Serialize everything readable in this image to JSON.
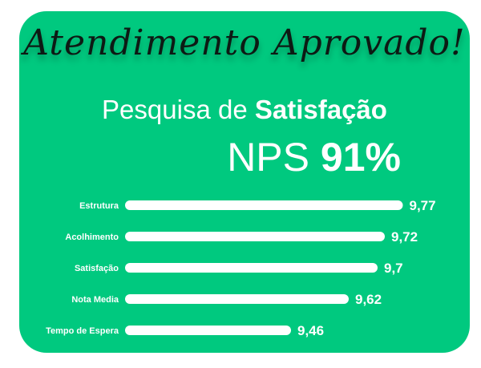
{
  "headline": "Atendimento Aprovado!",
  "title": {
    "light": "Pesquisa de",
    "bold": "Satisfação"
  },
  "nps": {
    "label": "NPS",
    "value": "91%"
  },
  "colors": {
    "background": "#00c97f",
    "bar": "#ffffff",
    "text": "#ffffff",
    "headline": "#0d1a14"
  },
  "chart_data": {
    "type": "bar",
    "orientation": "horizontal",
    "categories": [
      "Estrutura",
      "Acolhimento",
      "Satisfação",
      "Nota Media",
      "Tempo de Espera"
    ],
    "values": [
      9.77,
      9.72,
      9.7,
      9.62,
      9.46
    ],
    "value_labels": [
      "9,77",
      "9,72",
      "9,7",
      "9,62",
      "9,46"
    ],
    "grid": false,
    "legend": "none"
  }
}
